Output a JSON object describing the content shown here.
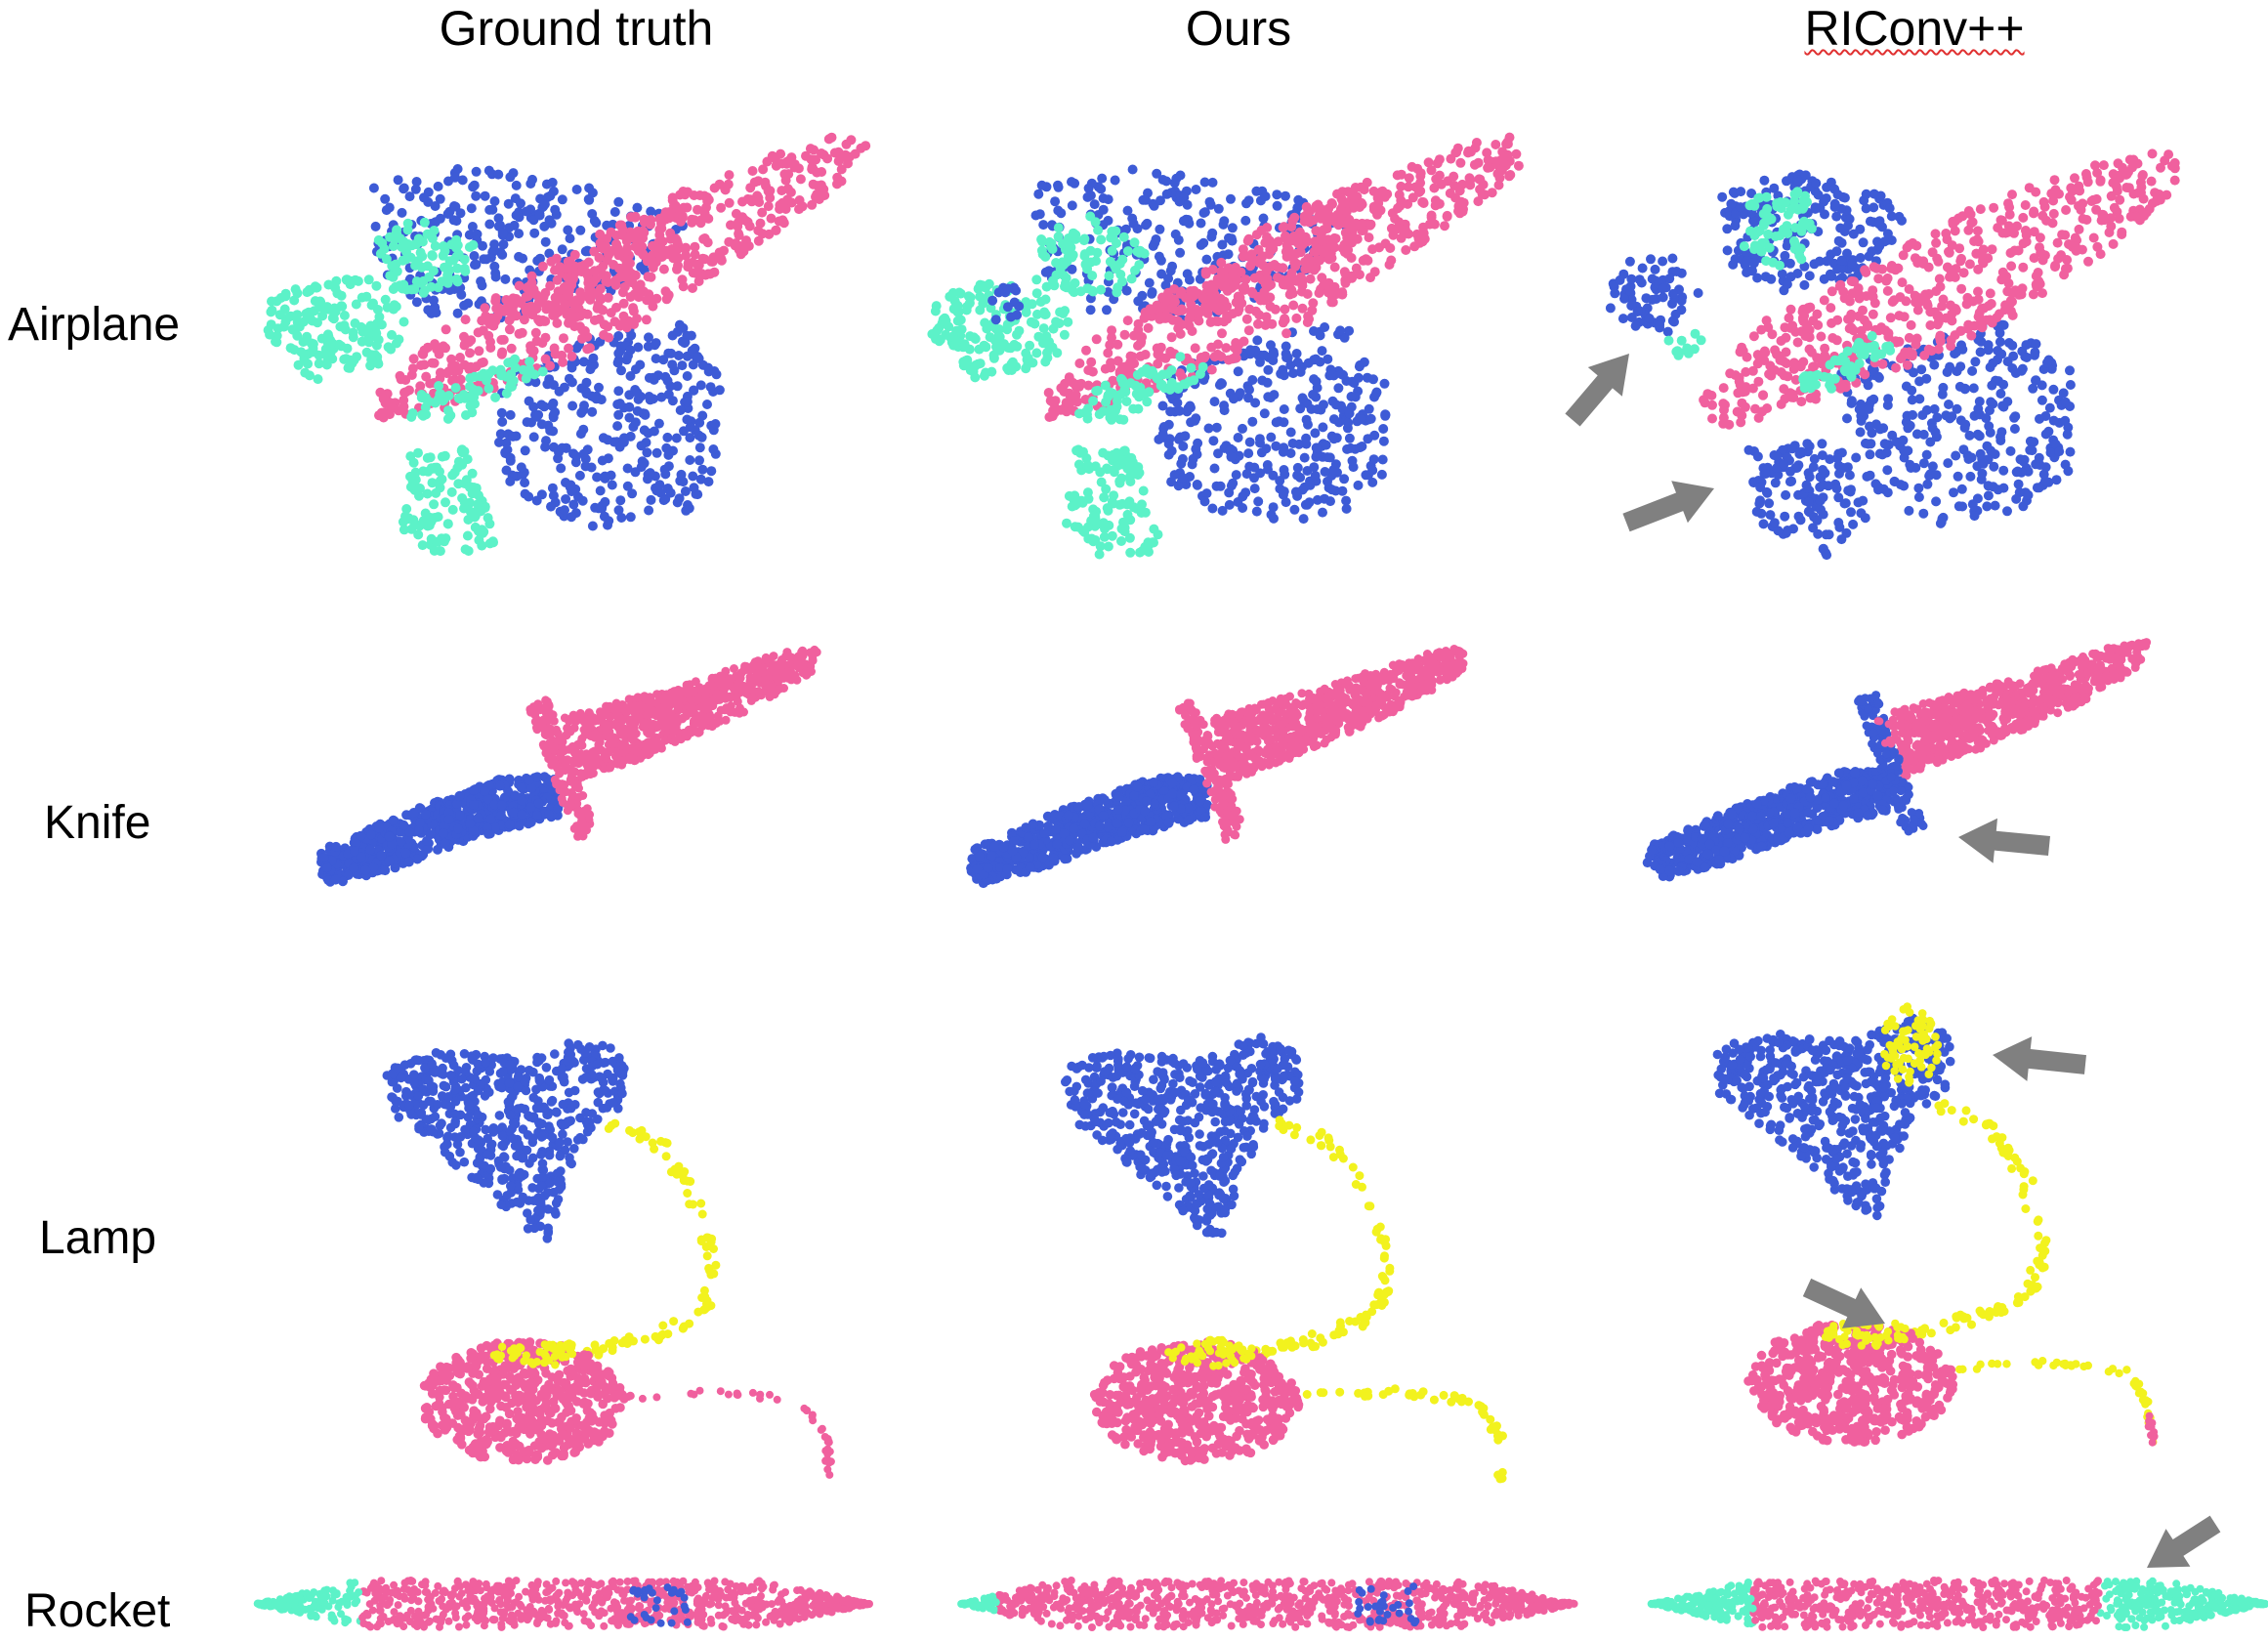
{
  "columns": [
    {
      "key": "ground_truth",
      "label": "Ground truth"
    },
    {
      "key": "ours",
      "label": "Ours"
    },
    {
      "key": "riconv",
      "label": "RIConv++"
    }
  ],
  "rows": [
    {
      "key": "airplane",
      "label": "Airplane"
    },
    {
      "key": "knife",
      "label": "Knife"
    },
    {
      "key": "lamp",
      "label": "Lamp"
    },
    {
      "key": "rocket",
      "label": "Rocket"
    }
  ],
  "colors": {
    "part_blue": "#3d5bd6",
    "part_pink": "#f0609e",
    "part_teal": "#5cf2c8",
    "part_yellow": "#f2f21e",
    "arrow_gray": "#808080"
  }
}
